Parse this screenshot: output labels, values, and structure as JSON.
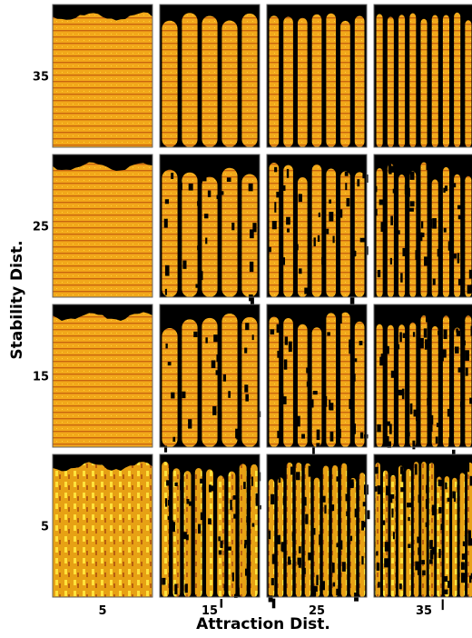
{
  "x_axis": {
    "label": "Attraction Dist.",
    "ticks": [
      5,
      15,
      25,
      35
    ]
  },
  "y_axis": {
    "label": "Stability Dist.",
    "ticks": [
      35,
      25,
      15,
      5
    ]
  }
}
